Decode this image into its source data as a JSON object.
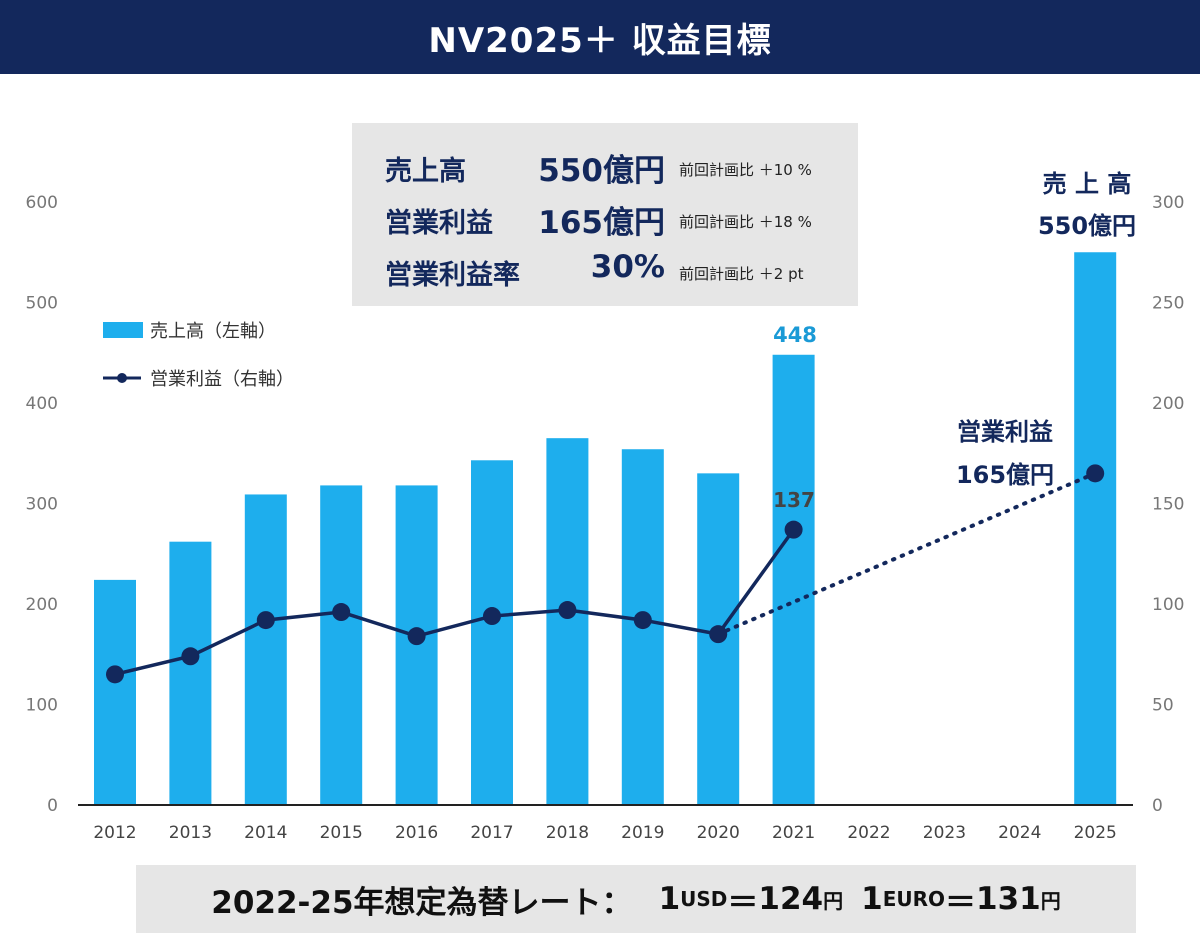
{
  "title": "NV2025＋ 収益目標",
  "summary": {
    "rows": [
      {
        "label": "売上高",
        "value": "550億円",
        "note": "前回計画比 ＋10 %"
      },
      {
        "label": "営業利益",
        "value": "165億円",
        "note": "前回計画比 ＋18 %"
      },
      {
        "label": "営業利益率",
        "value": "30%",
        "note": "前回計画比 ＋2 pt"
      }
    ]
  },
  "exchange": {
    "prefix": "2022-25年想定為替レート：",
    "usd_qty": "1",
    "usd_unit": "USD",
    "usd_eq": "＝",
    "usd_value": "124",
    "usd_yen": "円",
    "euro_qty": "1",
    "euro_unit": "EURO",
    "euro_eq": "＝",
    "euro_value": "131",
    "euro_yen": "円"
  },
  "colors": {
    "bar": "#1eaeed",
    "line": "#13285c",
    "title_bg": "#13285c",
    "box_bg": "#e6e6e6",
    "label_448": "#1a9ad6"
  },
  "chart_data": {
    "type": "bar",
    "categories": [
      "2012",
      "2013",
      "2014",
      "2015",
      "2016",
      "2017",
      "2018",
      "2019",
      "2020",
      "2021",
      "2022",
      "2023",
      "2024",
      "2025"
    ],
    "series": [
      {
        "name": "売上高（左軸）",
        "type": "bar",
        "axis": "left",
        "values": [
          224,
          262,
          309,
          318,
          318,
          343,
          365,
          354,
          330,
          448,
          null,
          null,
          null,
          550
        ]
      },
      {
        "name": "営業利益（右軸）",
        "type": "line",
        "axis": "right",
        "values": [
          65,
          74,
          92,
          96,
          84,
          94,
          97,
          92,
          85,
          137,
          null,
          null,
          null,
          165
        ]
      }
    ],
    "projection": {
      "from": "2020",
      "to": "2025",
      "style": "dotted"
    },
    "left_axis": {
      "ylim": [
        0,
        600
      ],
      "ticks": [
        0,
        100,
        200,
        300,
        400,
        500,
        600
      ]
    },
    "right_axis": {
      "ylim": [
        0,
        300
      ],
      "ticks": [
        0,
        50,
        100,
        150,
        200,
        250,
        300
      ]
    },
    "legend": {
      "placement": "top-left"
    },
    "annotations": {
      "bar_2021": "448",
      "line_2021": "137",
      "sales_2025_line1": "売 上 高",
      "sales_2025_line2": "550億円",
      "profit_2025_line1": "営業利益",
      "profit_2025_line2": "165億円"
    },
    "grid": false
  }
}
